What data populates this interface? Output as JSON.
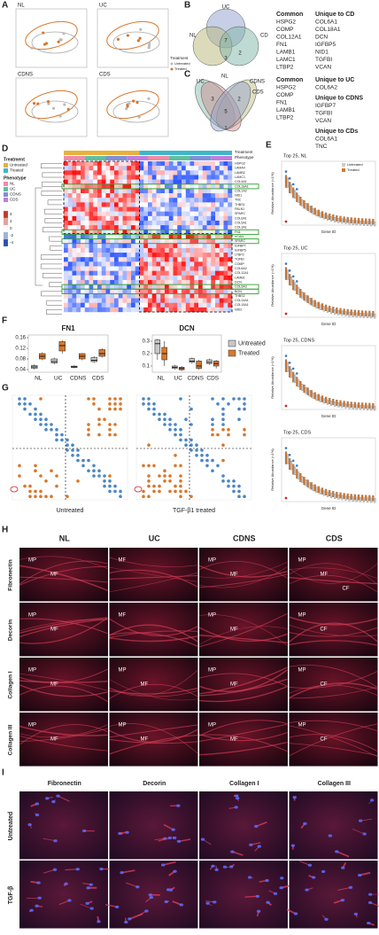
{
  "panel_labels": [
    "A",
    "B",
    "C",
    "D",
    "E",
    "F",
    "G",
    "H",
    "I"
  ],
  "A": {
    "plots": [
      "NL",
      "UC",
      "CDNS",
      "CDS"
    ],
    "legend_title": "Treatment",
    "legend": [
      "Untreated",
      "Treated"
    ]
  },
  "B": {
    "sets": [
      "UC",
      "NL",
      "CD"
    ],
    "counts": [
      7,
      2,
      3
    ],
    "common_title": "Common",
    "common": [
      "HSPG2",
      "COMP",
      "COL12A1",
      "FN1",
      "LAMB1",
      "LAMC1",
      "LTBP2"
    ],
    "unique_title": "Unique to CD",
    "unique": [
      "COL6A1",
      "COL18A1",
      "DCN",
      "IGFBP5",
      "NID1",
      "TGFBI",
      "VCAN"
    ]
  },
  "C": {
    "sets": [
      "UC",
      "NL",
      "CDNS",
      "CDS"
    ],
    "counts": [
      5,
      3,
      2,
      1
    ],
    "common_title": "Common",
    "common": [
      "HSPG2",
      "COMP",
      "FN1",
      "LAMB1",
      "LTBP2"
    ],
    "groups": [
      {
        "title": "Unique to UC",
        "genes": [
          "COL6A2"
        ]
      },
      {
        "title": "Unique to CDNS",
        "genes": [
          "IGFBP7",
          "TGFBI",
          "VCAN"
        ]
      },
      {
        "title": "Unique to CDs",
        "genes": [
          "COL6A1",
          "TNC"
        ]
      }
    ]
  },
  "D": {
    "treatment_title": "Treatment",
    "treatments": [
      "Untreated",
      "Treated"
    ],
    "phenotype_title": "Phenotype",
    "phenotypes": [
      "NL",
      "UC",
      "CDNS",
      "CDS"
    ],
    "scale": [
      4,
      2,
      0,
      -2,
      -4
    ],
    "header_labels": [
      "Treatment",
      "Phenotype"
    ],
    "genes": [
      "HSPG2",
      "LAMA4",
      "LAMB2",
      "LAMC1",
      "COL4A1",
      "COL18A1",
      "COL1A2",
      "NID1",
      "TNC",
      "THBS1",
      "FBLN1",
      "SPARC",
      "COL6A1",
      "COL5A1",
      "COL3A1",
      "FN1",
      "VCAN",
      "SPARC",
      "IGFBP7",
      "IGFBP5",
      "LTBP2",
      "TGFBI",
      "COMP",
      "COL6A2",
      "COL12A1",
      "LAMB1",
      "DCN",
      "COL6A3",
      "BGN",
      "THBS2",
      "COL14A1",
      "COL15A1",
      "NID2"
    ]
  },
  "E": {
    "titles": [
      "Top 25, NL",
      "Top 25, UC",
      "Top 25, CDNS",
      "Top 25, CDS"
    ],
    "y_label": "Relative Abundance (<1%)",
    "x_label": "Gene ID",
    "legend": [
      "Untreated",
      "Treated"
    ]
  },
  "chart_data": [
    {
      "type": "box",
      "title": "FN1",
      "categories": [
        "NL",
        "UC",
        "CDNS",
        "CDS"
      ],
      "ylim": [
        0.03,
        0.17
      ],
      "yticks": [
        0.04,
        0.08,
        0.12,
        0.16
      ],
      "series": [
        {
          "color": "#c8c8c8",
          "values": [
            {
              "min": 0.04,
              "q1": 0.045,
              "median": 0.05,
              "q3": 0.055,
              "max": 0.06
            },
            {
              "min": 0.06,
              "q1": 0.065,
              "median": 0.07,
              "q3": 0.08,
              "max": 0.085
            },
            {
              "min": 0.045,
              "q1": 0.048,
              "median": 0.05,
              "q3": 0.053,
              "max": 0.056
            },
            {
              "min": 0.065,
              "q1": 0.07,
              "median": 0.075,
              "q3": 0.085,
              "max": 0.09
            }
          ]
        },
        {
          "color": "#d9772b",
          "values": [
            {
              "min": 0.075,
              "q1": 0.08,
              "median": 0.09,
              "q3": 0.1,
              "max": 0.105
            },
            {
              "min": 0.1,
              "q1": 0.11,
              "median": 0.13,
              "q3": 0.145,
              "max": 0.15
            },
            {
              "min": 0.075,
              "q1": 0.08,
              "median": 0.09,
              "q3": 0.1,
              "max": 0.102
            },
            {
              "min": 0.085,
              "q1": 0.09,
              "median": 0.1,
              "q3": 0.115,
              "max": 0.12
            }
          ]
        }
      ]
    },
    {
      "type": "box",
      "title": "DCN",
      "categories": [
        "NL",
        "UC",
        "CDNS",
        "CDS"
      ],
      "ylim": [
        0.05,
        0.35
      ],
      "yticks": [
        {
          "value": 0.1,
          "label": "0.1"
        },
        0.2,
        0.3
      ],
      "legend": true,
      "series": [
        {
          "name": "Untreated",
          "color": "#c8c8c8",
          "values": [
            {
              "min": 0.15,
              "q1": 0.2,
              "median": 0.28,
              "q3": 0.31,
              "max": 0.32
            },
            {
              "min": 0.07,
              "q1": 0.08,
              "median": 0.09,
              "q3": 0.1,
              "max": 0.11
            },
            {
              "min": 0.12,
              "q1": 0.13,
              "median": 0.14,
              "q3": 0.16,
              "max": 0.17
            },
            {
              "min": 0.11,
              "q1": 0.12,
              "median": 0.13,
              "q3": 0.15,
              "max": 0.16
            }
          ]
        },
        {
          "name": "Treated",
          "color": "#d9772b",
          "values": [
            {
              "min": 0.1,
              "q1": 0.15,
              "median": 0.2,
              "q3": 0.25,
              "max": 0.3
            },
            {
              "min": 0.06,
              "q1": 0.07,
              "median": 0.08,
              "q3": 0.09,
              "max": 0.1
            },
            {
              "min": 0.07,
              "q1": 0.08,
              "median": 0.1,
              "q3": 0.14,
              "max": 0.15
            },
            {
              "min": 0.08,
              "q1": 0.1,
              "median": 0.12,
              "q3": 0.14,
              "max": 0.15
            }
          ]
        }
      ]
    }
  ],
  "G": {
    "captions": [
      "Untreated",
      "TGF-β1 treated"
    ]
  },
  "H": {
    "columns": [
      "NL",
      "UC",
      "CDNS",
      "CDS"
    ],
    "rows": [
      "Fibronectin",
      "Decorin",
      "Collagen I",
      "Collagen III"
    ],
    "cells": [
      [
        [
          "MP",
          "MF"
        ],
        [
          "MF"
        ],
        [
          "MP",
          "MF"
        ],
        [
          "MP",
          "MF",
          "CF"
        ]
      ],
      [
        [
          "MP",
          "MF"
        ],
        [
          "MF"
        ],
        [
          "MP",
          "MF"
        ],
        [
          "MP",
          "CF"
        ]
      ],
      [
        [
          "MP",
          "MF"
        ],
        [
          "MP",
          "MF"
        ],
        [
          "MP",
          "MF"
        ],
        [
          "MP",
          "CF"
        ]
      ],
      [
        [
          "MP",
          "MF"
        ],
        [
          "MP",
          "MF"
        ],
        [
          "MP",
          "MF"
        ],
        [
          "MP",
          "CF"
        ]
      ]
    ]
  },
  "I": {
    "columns": [
      "Fibronectin",
      "Decorin",
      "Collagen I",
      "Collagen III"
    ],
    "rows": [
      "Untreated",
      "TGF-β"
    ]
  }
}
